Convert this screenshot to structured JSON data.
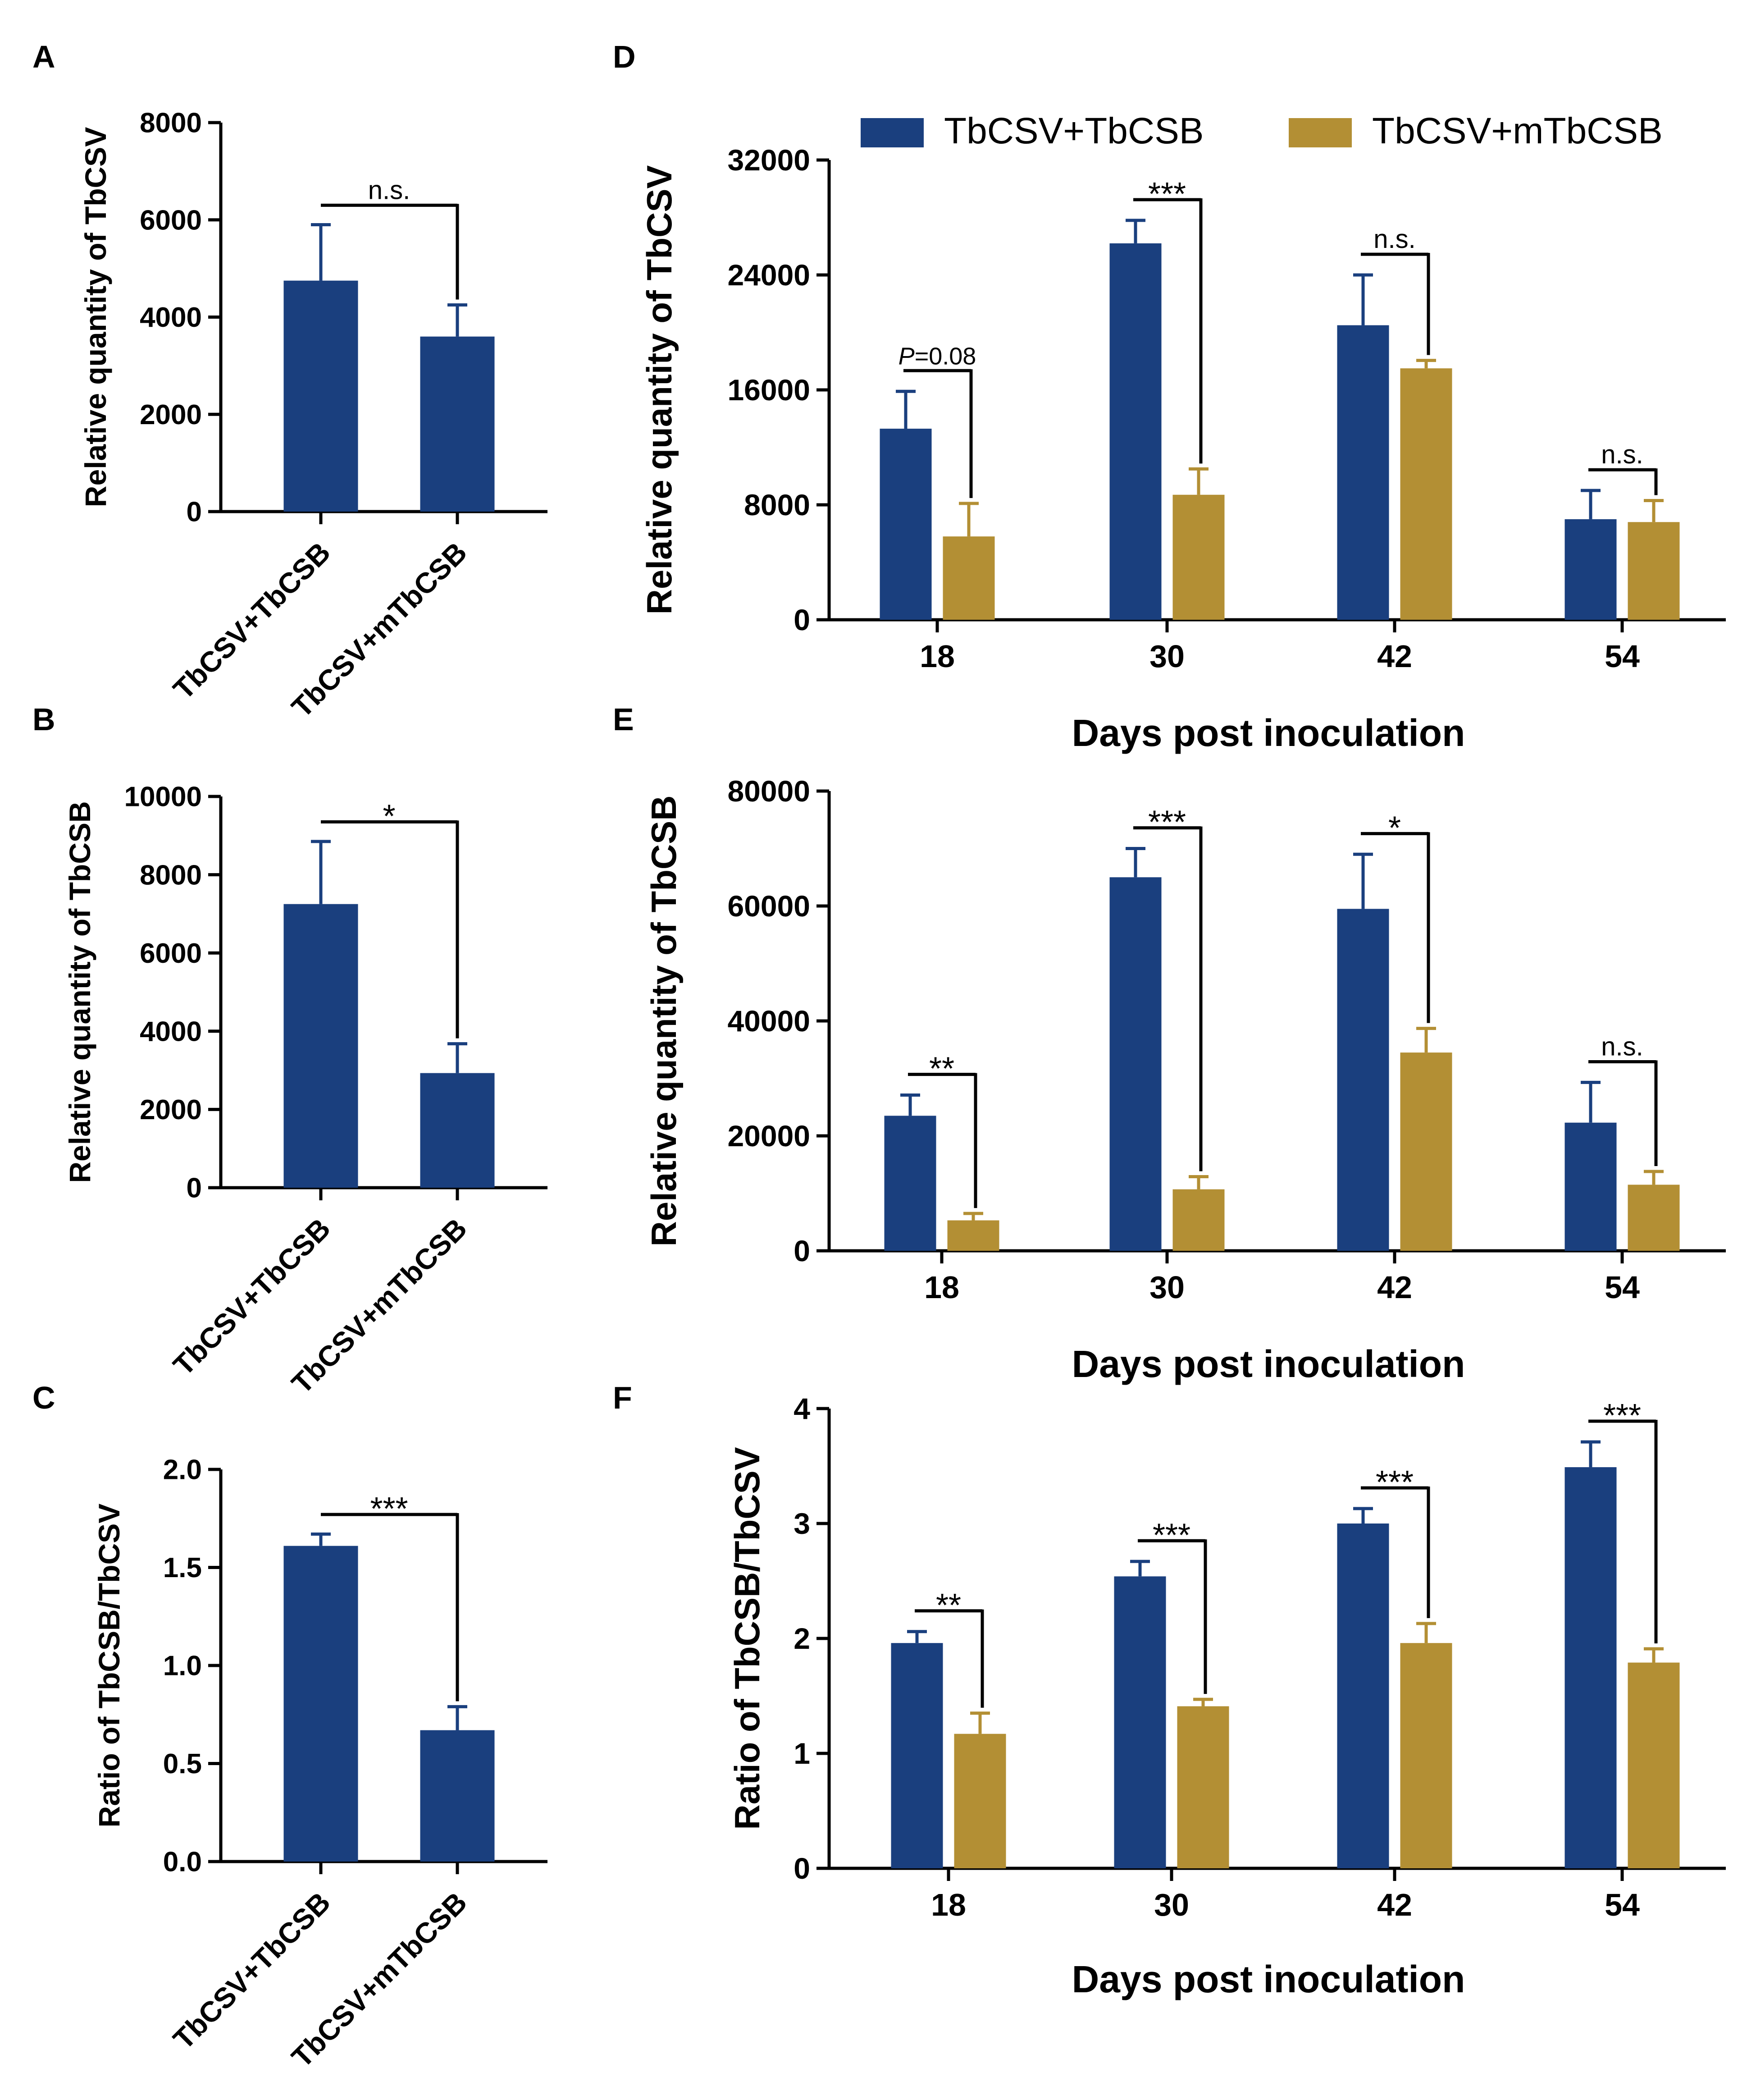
{
  "colors": {
    "series1": "#1a3f7e",
    "series2": "#b38f34",
    "axis": "#000000"
  },
  "chart_data": [
    {
      "panel": "A",
      "type": "bar",
      "categories": [
        "TbCSV+TbCSB",
        "TbCSV+mTbCSB"
      ],
      "values": [
        4750,
        3600
      ],
      "errors": [
        1150,
        650
      ],
      "ylabel": "Relative quantity of TbCSV",
      "ylim": [
        0,
        8000
      ],
      "yticks": [
        0,
        2000,
        4000,
        6000,
        8000
      ],
      "significance": [
        {
          "label": "n.s.",
          "pair": [
            0,
            1
          ]
        }
      ]
    },
    {
      "panel": "B",
      "type": "bar",
      "categories": [
        "TbCSV+TbCSB",
        "TbCSV+mTbCSB"
      ],
      "values": [
        7250,
        2930
      ],
      "errors": [
        1600,
        750
      ],
      "ylabel": "Relative quantity of TbCSB",
      "ylim": [
        0,
        10000
      ],
      "yticks": [
        0,
        2000,
        4000,
        6000,
        8000,
        10000
      ],
      "significance": [
        {
          "label": "*",
          "pair": [
            0,
            1
          ]
        }
      ]
    },
    {
      "panel": "C",
      "type": "bar",
      "categories": [
        "TbCSV+TbCSB",
        "TbCSV+mTbCSB"
      ],
      "values": [
        1.61,
        0.67
      ],
      "errors": [
        0.06,
        0.12
      ],
      "ylabel": "Ratio of TbCSB/TbCSV",
      "ylim": [
        0,
        2.0
      ],
      "yticks": [
        "0.0",
        "0.5",
        "1.0",
        "1.5",
        "2.0"
      ],
      "significance": [
        {
          "label": "***",
          "pair": [
            0,
            1
          ]
        }
      ]
    },
    {
      "panel": "D",
      "type": "bar",
      "categories": [
        "18",
        "30",
        "42",
        "54"
      ],
      "xlabel": "Days post inoculation",
      "ylabel": "Relative quantity of TbCSV",
      "ylim": [
        0,
        32000
      ],
      "yticks": [
        0,
        8000,
        16000,
        24000,
        32000
      ],
      "legend": {
        "placement": "top",
        "entries": [
          "TbCSV+TbCSB",
          "TbCSV+mTbCSB"
        ]
      },
      "series": [
        {
          "name": "TbCSV+TbCSB",
          "values": [
            13300,
            26200,
            20500,
            7000
          ],
          "errors": [
            2600,
            1600,
            3500,
            2000
          ]
        },
        {
          "name": "TbCSV+mTbCSB",
          "values": [
            5800,
            8700,
            17500,
            6800
          ],
          "errors": [
            2300,
            1800,
            550,
            1500
          ]
        }
      ],
      "significance": [
        {
          "label": "=0.08",
          "italic_prefix": "P",
          "group": 0
        },
        {
          "label": "***",
          "group": 1
        },
        {
          "label": "n.s.",
          "group": 2
        },
        {
          "label": "n.s.",
          "group": 3
        }
      ]
    },
    {
      "panel": "E",
      "type": "bar",
      "categories": [
        "18",
        "30",
        "42",
        "54"
      ],
      "xlabel": "Days post inoculation",
      "ylabel": "Relative quantity of TbCSB",
      "ylim": [
        0,
        80000
      ],
      "yticks": [
        0,
        20000,
        40000,
        60000,
        80000
      ],
      "series": [
        {
          "name": "TbCSV+TbCSB",
          "values": [
            23500,
            65000,
            59500,
            22300
          ],
          "errors": [
            3600,
            5000,
            9500,
            7000
          ]
        },
        {
          "name": "TbCSV+mTbCSB",
          "values": [
            5300,
            10700,
            34500,
            11500
          ],
          "errors": [
            1200,
            2200,
            4200,
            2300
          ]
        }
      ],
      "significance": [
        {
          "label": "**",
          "group": 0
        },
        {
          "label": "***",
          "group": 1
        },
        {
          "label": "*",
          "group": 2
        },
        {
          "label": "n.s.",
          "group": 3
        }
      ]
    },
    {
      "panel": "F",
      "type": "bar",
      "categories": [
        "18",
        "30",
        "42",
        "54"
      ],
      "xlabel": "Days post inoculation",
      "ylabel": "Ratio of TbCSB/TbCSV",
      "ylim": [
        0,
        4
      ],
      "yticks": [
        0,
        1,
        2,
        3,
        4
      ],
      "series": [
        {
          "name": "TbCSV+TbCSB",
          "values": [
            1.96,
            2.54,
            3.0,
            3.49
          ],
          "errors": [
            0.1,
            0.13,
            0.13,
            0.22
          ]
        },
        {
          "name": "TbCSV+mTbCSB",
          "values": [
            1.17,
            1.41,
            1.96,
            1.79
          ],
          "errors": [
            0.18,
            0.06,
            0.17,
            0.12
          ]
        }
      ],
      "significance": [
        {
          "label": "**",
          "group": 0
        },
        {
          "label": "***",
          "group": 1
        },
        {
          "label": "***",
          "group": 2
        },
        {
          "label": "***",
          "group": 3
        }
      ]
    }
  ]
}
